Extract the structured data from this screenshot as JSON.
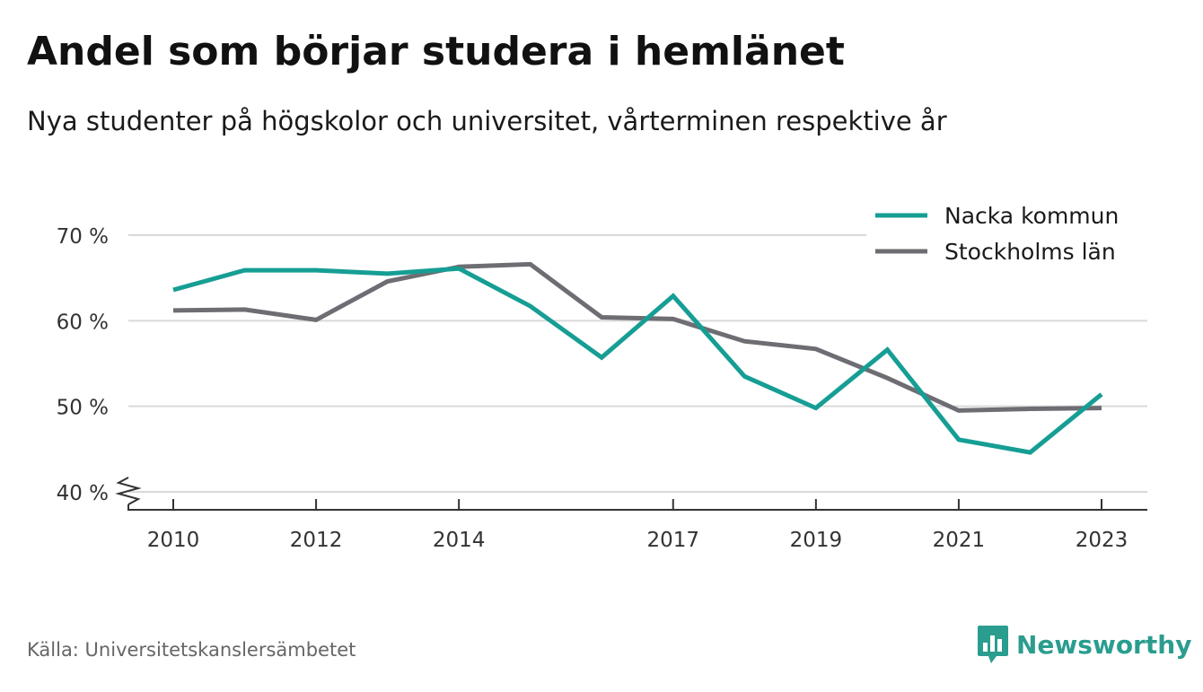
{
  "chart_data": {
    "type": "line",
    "title": "Andel som börjar studera i hemlänet",
    "subtitle": "Nya studenter på högskolor och universitet, vårterminen respektive år",
    "x": [
      2010,
      2011,
      2012,
      2013,
      2014,
      2015,
      2016,
      2017,
      2018,
      2019,
      2020,
      2021,
      2022,
      2023
    ],
    "x_ticks": [
      2010,
      2012,
      2014,
      2017,
      2019,
      2021,
      2023
    ],
    "y_ticks": [
      40,
      50,
      60,
      70
    ],
    "y_tick_labels": [
      "40 %",
      "50 %",
      "60 %",
      "70 %"
    ],
    "ylim": [
      40,
      70
    ],
    "y_axis_break": true,
    "grid": "horizontal",
    "legend_position": "top-right",
    "series": [
      {
        "name": "Nacka kommun",
        "color": "#169e94",
        "values": [
          63.6,
          65.9,
          65.9,
          65.5,
          66.1,
          61.7,
          55.7,
          62.9,
          53.5,
          49.8,
          56.6,
          46.1,
          44.6,
          51.4
        ]
      },
      {
        "name": "Stockholms län",
        "color": "#6e6d73",
        "values": [
          61.2,
          61.3,
          60.1,
          64.6,
          66.3,
          66.6,
          60.4,
          60.2,
          57.6,
          56.7,
          53.3,
          49.5,
          49.7,
          49.8
        ]
      }
    ]
  },
  "source": "Källa: Universitetskanslersämbetet",
  "brand": {
    "name": "Newsworthy",
    "icon": "bar-chart-speech-bubble-icon",
    "color": "#2a9d8f"
  }
}
